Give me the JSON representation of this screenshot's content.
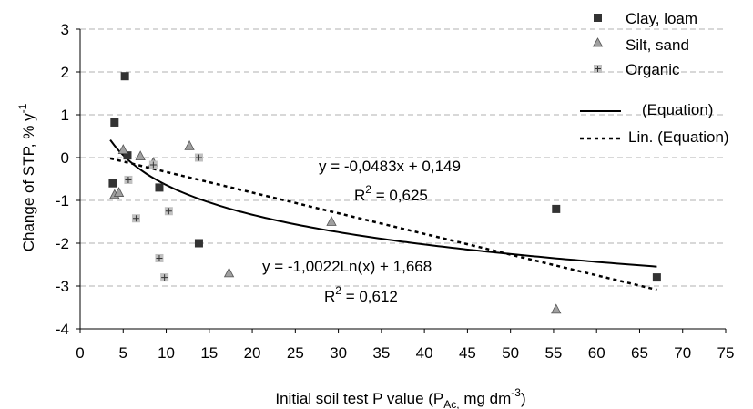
{
  "chart_data": {
    "type": "scatter",
    "title": "",
    "xlabel": {
      "main": "Initial soil test P value (P",
      "sub": "Ac,",
      "rest": " mg dm",
      "sup": "-3",
      "end": ")"
    },
    "ylabel": {
      "main": "Change of STP, % y",
      "sup": "-1"
    },
    "xlim": [
      0,
      75
    ],
    "ylim": [
      -4,
      3
    ],
    "xticks": [
      "0",
      "5",
      "10",
      "15",
      "20",
      "25",
      "30",
      "35",
      "40",
      "45",
      "50",
      "55",
      "60",
      "65",
      "70",
      "75"
    ],
    "yticks": [
      "3",
      "2",
      "1",
      "0",
      "-1",
      "-2",
      "-3",
      "-4"
    ],
    "grid": "horizontal dashed",
    "legend_position": "top-right",
    "series": [
      {
        "name": "Clay, loam",
        "marker": "square",
        "color": "#333333",
        "points": [
          [
            3.8,
            -0.6
          ],
          [
            4.0,
            0.82
          ],
          [
            5.2,
            1.9
          ],
          [
            5.5,
            0.05
          ],
          [
            9.2,
            -0.7
          ],
          [
            13.8,
            -2.0
          ],
          [
            55.3,
            -1.2
          ],
          [
            67.0,
            -2.8
          ]
        ]
      },
      {
        "name": "Silt,  sand",
        "marker": "triangle",
        "color": "#a0a0a0",
        "points": [
          [
            4.0,
            -0.87
          ],
          [
            4.5,
            -0.82
          ],
          [
            5.0,
            0.18
          ],
          [
            7.0,
            0.03
          ],
          [
            8.5,
            -0.12
          ],
          [
            12.7,
            0.27
          ],
          [
            17.3,
            -2.7
          ],
          [
            29.2,
            -1.5
          ],
          [
            55.3,
            -3.55
          ]
        ]
      },
      {
        "name": "Organic",
        "marker": "square-plus",
        "color": "#c0c0c0",
        "points": [
          [
            5.6,
            -0.52
          ],
          [
            6.5,
            -1.42
          ],
          [
            8.5,
            -0.17
          ],
          [
            9.2,
            -2.35
          ],
          [
            9.8,
            -2.8
          ],
          [
            10.3,
            -1.25
          ],
          [
            13.8,
            0.0
          ]
        ]
      }
    ],
    "fits": [
      {
        "name": "(Equation)",
        "kind": "logarithmic",
        "a": -1.0022,
        "b": 1.668,
        "x_range": [
          3.5,
          67
        ],
        "style": "solid"
      },
      {
        "name": "Lin. (Equation)",
        "kind": "linear",
        "slope": -0.0483,
        "intercept": 0.149,
        "x_range": [
          3.5,
          67
        ],
        "style": "dotted"
      }
    ],
    "annotations": {
      "lin_eq": "y = -0,0483x + 0,149",
      "lin_r2": "R",
      "lin_r2_sup": "2",
      "lin_r2_val": " = 0,625",
      "log_eq": "y = -1,0022Ln(x) + 1,668",
      "log_r2": "R",
      "log_r2_sup": "2",
      "log_r2_val": " = 0,612"
    }
  }
}
